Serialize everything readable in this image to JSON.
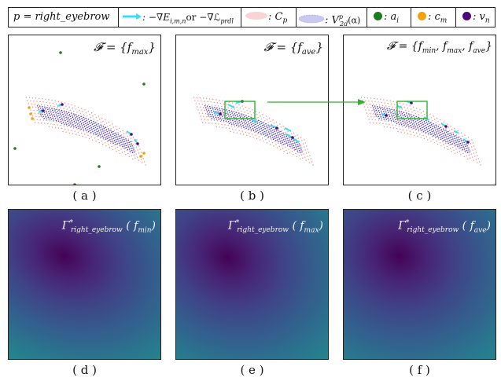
{
  "legend": {
    "p_label": "p = right_eyebrow",
    "grad_label": ": −∇E",
    "grad_sub": "i,m,n",
    "grad_or": "or −∇ℒ",
    "grad_sub2": "prdl",
    "cp_label": ": C",
    "cp_sub": "p",
    "v_label": ": V",
    "v_sup": "p",
    "v_sub": "2d",
    "v_tail": "(α)",
    "a_label": ": a",
    "a_sub": "i",
    "c_label": ": c",
    "c_sub": "m",
    "vn_label": ": v",
    "vn_sub": "n"
  },
  "colors": {
    "arrow": "#33e0ee",
    "cp": "#f08a8a",
    "v2d": "#3b3fd6",
    "a_dot": "#1a7f1a",
    "c_dot": "#f5a20a",
    "v_dot": "#4b0a78",
    "green_box": "#2ab52a"
  },
  "panels": {
    "a": {
      "formula": "𝓕 = {f",
      "sub": "max",
      "tail": "}",
      "caption": "( a )"
    },
    "b": {
      "formula": "𝓕 = {f",
      "sub": "ave",
      "tail": "}",
      "caption": "( b )"
    },
    "c": {
      "formula": "𝓕 = {f",
      "sub": "min",
      "mid1": ", f",
      "sub2": "max",
      "mid2": ", f",
      "sub3": "ave",
      "tail": "}",
      "caption": "( c )"
    },
    "d": {
      "label": "Γ",
      "sup": "*",
      "sub": "right_eyebrow",
      "arg": "( f",
      "argsub": "min",
      "argtail": ")",
      "caption": "( d )"
    },
    "e": {
      "label": "Γ",
      "sup": "*",
      "sub": "right_eyebrow",
      "arg": "( f",
      "argsub": "max",
      "argtail": ")",
      "caption": "( e )"
    },
    "f": {
      "label": "Γ",
      "sup": "*",
      "sub": "right_eyebrow",
      "arg": "( f",
      "argsub": "ave",
      "argtail": ")",
      "caption": "( f )"
    }
  }
}
